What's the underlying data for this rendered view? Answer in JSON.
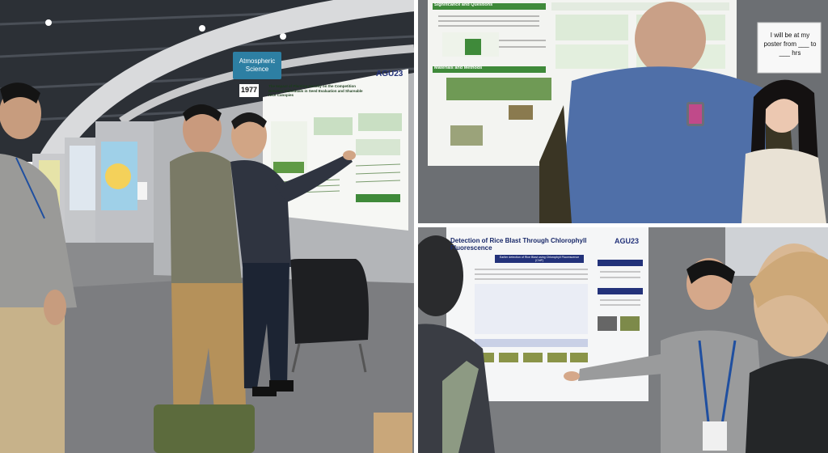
{
  "panels": {
    "left": {
      "booth_sign": "Atmospheric Science",
      "poster_number": "1977",
      "conference_logo": "AGU23",
      "poster_title": "The Impact of Planting Density on the Competition Between Individuals in Seed Evaluation and Shareable Rice Canopies"
    },
    "top_right": {
      "sign_note": "I will be at my poster from ___ to ___ hrs",
      "section_1": "Significance and Questions",
      "section_2": "Materials and Methods"
    },
    "bottom_right": {
      "conference_logo": "AGU23",
      "poster_title": "Detection of Rice Blast Through Chlorophyll Fluorescence",
      "section_box": "Earlier detection of Rice Blast using Chlorophyll Fluorescence (ChlF)"
    }
  },
  "colors": {
    "poster_green": "#3f8a3a",
    "sweater_blue": "#4f6fa8",
    "sign_blue": "#2d7fa3"
  }
}
